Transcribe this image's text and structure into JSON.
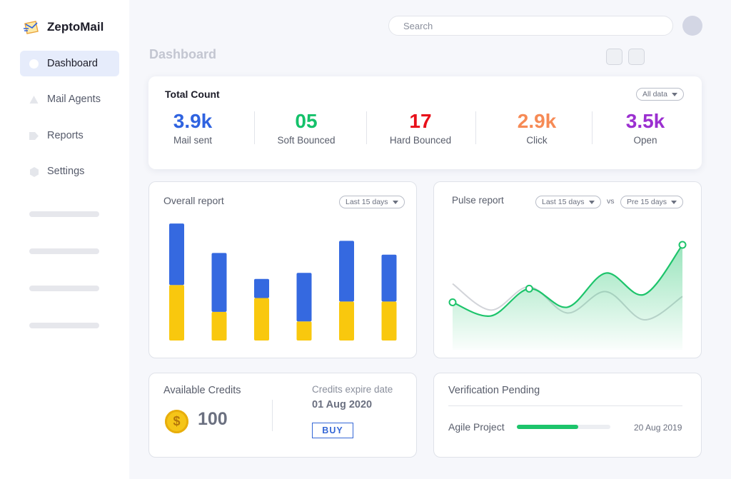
{
  "app": {
    "name": "ZeptoMail"
  },
  "sidebar": {
    "items": [
      {
        "label": "Dashboard",
        "icon": "dashboard-icon",
        "active": true
      },
      {
        "label": "Mail Agents",
        "icon": "mail-agents-icon"
      },
      {
        "label": "Reports",
        "icon": "reports-icon"
      },
      {
        "label": "Settings",
        "icon": "settings-icon"
      }
    ]
  },
  "header": {
    "search_placeholder": "Search",
    "page_title": "Dashboard"
  },
  "total_count": {
    "title": "Total Count",
    "filter": "All data",
    "stats": [
      {
        "value": "3.9k",
        "label": "Mail sent",
        "color": "#2f63e0"
      },
      {
        "value": "05",
        "label": "Soft Bounced",
        "color": "#14c16a"
      },
      {
        "value": "17",
        "label": "Hard Bounced",
        "color": "#e8101a"
      },
      {
        "value": "2.9k",
        "label": "Click",
        "color": "#f68a55"
      },
      {
        "value": "3.5k",
        "label": "Open",
        "color": "#9b2fd0"
      }
    ]
  },
  "overall_report": {
    "title": "Overall report",
    "filter": "Last 15 days",
    "chart_data": {
      "type": "bar",
      "stacked": true,
      "categories": [
        "",
        "",
        "",
        "",
        "",
        ""
      ],
      "series": [
        {
          "values": [
            64,
            33,
            49,
            22,
            45,
            45
          ],
          "color": "#f9c80e"
        },
        {
          "values": [
            71,
            68,
            22,
            56,
            70,
            54
          ],
          "color": "#3569e0"
        }
      ],
      "ylim": [
        0,
        140
      ]
    }
  },
  "pulse_report": {
    "title": "Pulse report",
    "filter_a": "Last 15 days",
    "vs_label": "vs",
    "filter_b": "Pre 15 days",
    "chart_data": {
      "type": "area",
      "series": [
        {
          "values": [
            4,
            2.6,
            5.4,
            3.5,
            7,
            4.8,
            9.9
          ],
          "color": "#1dc46b"
        },
        {
          "values": [
            5.9,
            3.2,
            5.6,
            2.9,
            5.1,
            2.2,
            4.6
          ],
          "color": "#d2d4d9"
        }
      ],
      "ylim": [
        0,
        11
      ]
    }
  },
  "credits": {
    "title": "Available Credits",
    "amount": "100",
    "expire_label": "Credits expire date",
    "expire_date": "01 Aug 2020",
    "buy_label": "BUY"
  },
  "verification": {
    "title": "Verification Pending",
    "project": "Agile Project",
    "progress": 0.66,
    "date": "20 Aug 2019"
  }
}
